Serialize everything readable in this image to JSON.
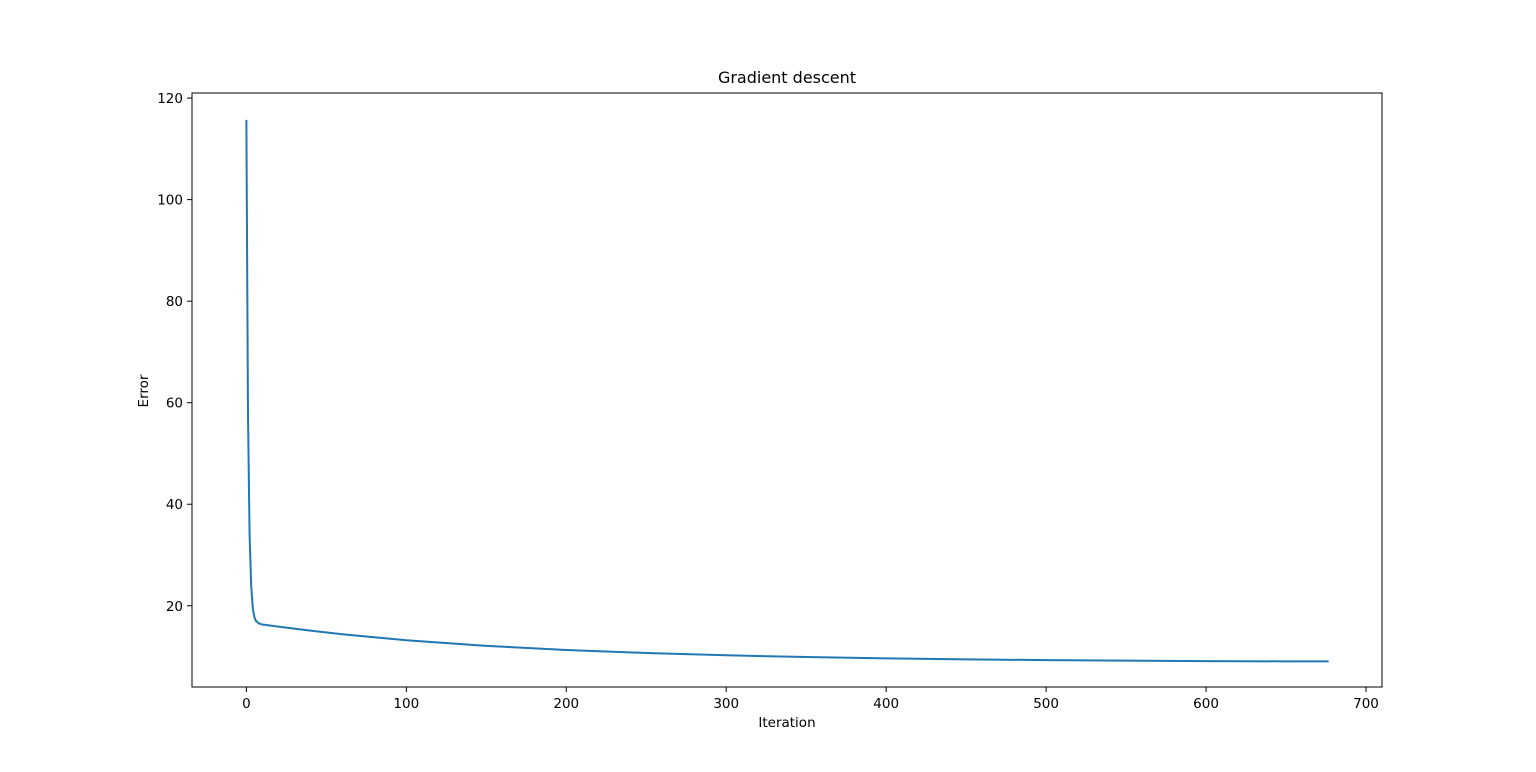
{
  "chart_data": {
    "type": "line",
    "title": "Gradient descent",
    "xlabel": "Iteration",
    "ylabel": "Error",
    "xlim": [
      -34,
      710
    ],
    "ylim": [
      4,
      121
    ],
    "xticks": [
      0,
      100,
      200,
      300,
      400,
      500,
      600,
      700
    ],
    "yticks": [
      20,
      40,
      60,
      80,
      100,
      120
    ],
    "grid": false,
    "series": [
      {
        "color": "#1f77b4",
        "x": [
          0,
          1,
          2,
          3,
          4,
          5,
          6,
          8,
          10,
          20,
          40,
          60,
          80,
          100,
          150,
          200,
          250,
          300,
          350,
          400,
          450,
          500,
          550,
          600,
          650,
          676
        ],
        "y": [
          115.5,
          58,
          34,
          24,
          19.5,
          17.8,
          17,
          16.5,
          16.3,
          15.9,
          15.1,
          14.4,
          13.8,
          13.2,
          12.1,
          11.3,
          10.7,
          10.25,
          9.9,
          9.65,
          9.45,
          9.3,
          9.2,
          9.1,
          9.05,
          9.05
        ]
      }
    ]
  }
}
